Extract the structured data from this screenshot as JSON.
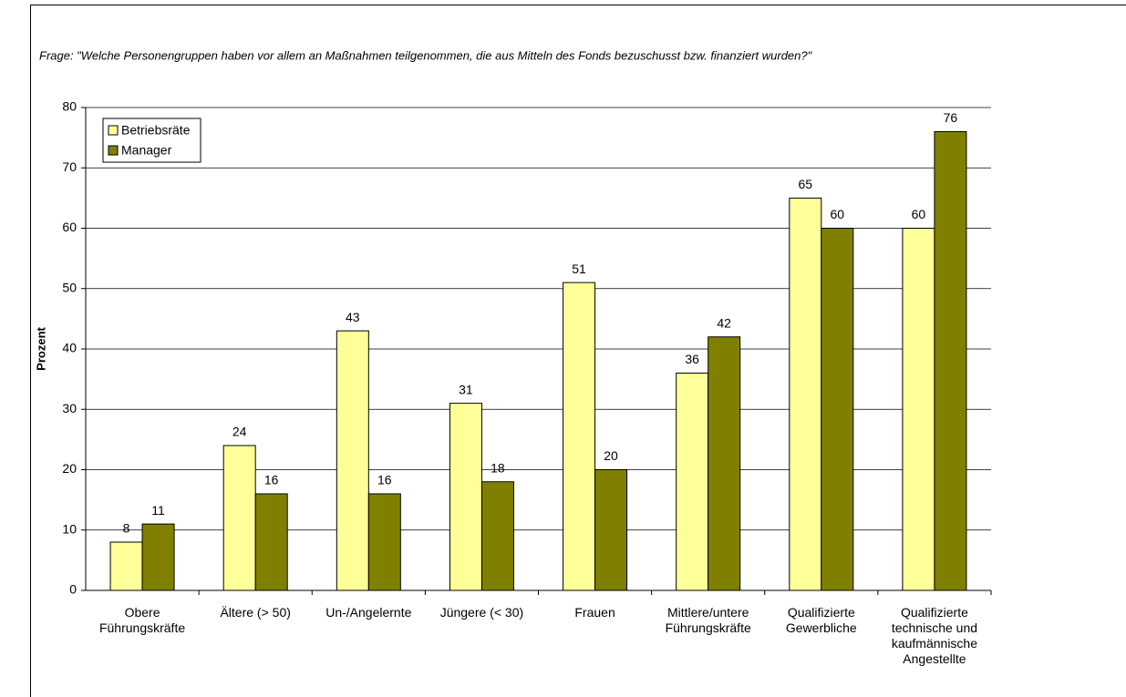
{
  "chart_data": {
    "type": "bar",
    "title": "Frage: \"Welche Personengruppen haben vor allem an Maßnahmen teilgenommen, die aus Mitteln des Fonds bezuschusst bzw. finanziert wurden?\"",
    "y_label": "Prozent",
    "categories": [
      "Obere\nFührungskräfte",
      "Ältere (> 50)",
      "Un-/Angelernte",
      "Jüngere (< 30)",
      "Frauen",
      "Mittlere/untere\nFührungskräfte",
      "Qualifizierte\nGewerbliche",
      "Qualifizierte\ntechnische und\nkaufmännische\nAngestellte"
    ],
    "series": [
      {
        "name": "Betriebsräte",
        "color": "#ffff99",
        "values": [
          8,
          24,
          43,
          31,
          51,
          36,
          65,
          60
        ]
      },
      {
        "name": "Manager",
        "color": "#808000",
        "values": [
          11,
          16,
          16,
          18,
          20,
          42,
          60,
          76
        ]
      }
    ],
    "ylim": [
      0,
      80
    ],
    "yticks": [
      0,
      10,
      20,
      30,
      40,
      50,
      60,
      70,
      80
    ],
    "grid": true,
    "legend": "top-left"
  }
}
